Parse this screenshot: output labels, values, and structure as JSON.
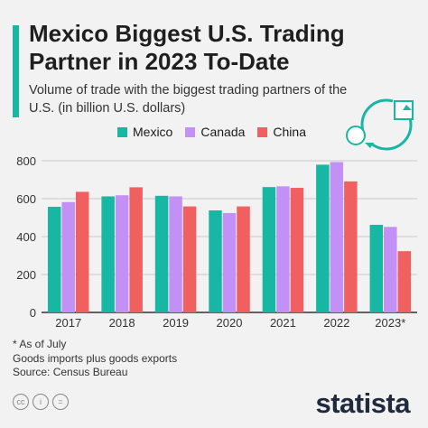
{
  "header": {
    "title": "Mexico Biggest U.S. Trading Partner in 2023 To-Date",
    "subtitle": "Volume of trade with the biggest trading partners of the U.S. (in billion U.S. dollars)"
  },
  "notes": {
    "footnote": "* As of July",
    "definition": "Goods imports plus goods exports",
    "source": "Source: Census Bureau"
  },
  "footer": {
    "brand": "statista",
    "license_icons": [
      "cc-icon",
      "by-icon",
      "nd-icon"
    ],
    "license_text": [
      "cc",
      "i",
      "="
    ]
  },
  "colors": {
    "accent": "#17b7a4",
    "mexico": "#17b7a4",
    "canada": "#c390f5",
    "china": "#f06060"
  },
  "chart_data": {
    "type": "bar",
    "title": "Mexico Biggest U.S. Trading Partner in 2023 To-Date",
    "categories": [
      "2017",
      "2018",
      "2019",
      "2020",
      "2021",
      "2022",
      "2023*"
    ],
    "series": [
      {
        "name": "Mexico",
        "color": "#17b7a4",
        "values": [
          557,
          612,
          615,
          538,
          661,
          779,
          462
        ]
      },
      {
        "name": "Canada",
        "color": "#c390f5",
        "values": [
          582,
          618,
          612,
          524,
          665,
          793,
          451
        ]
      },
      {
        "name": "China",
        "color": "#f06060",
        "values": [
          636,
          660,
          559,
          559,
          657,
          691,
          323
        ]
      }
    ],
    "ylim": [
      0,
      800
    ],
    "yticks": [
      0,
      200,
      400,
      600,
      800
    ],
    "grid": true,
    "legend_position": "top"
  }
}
